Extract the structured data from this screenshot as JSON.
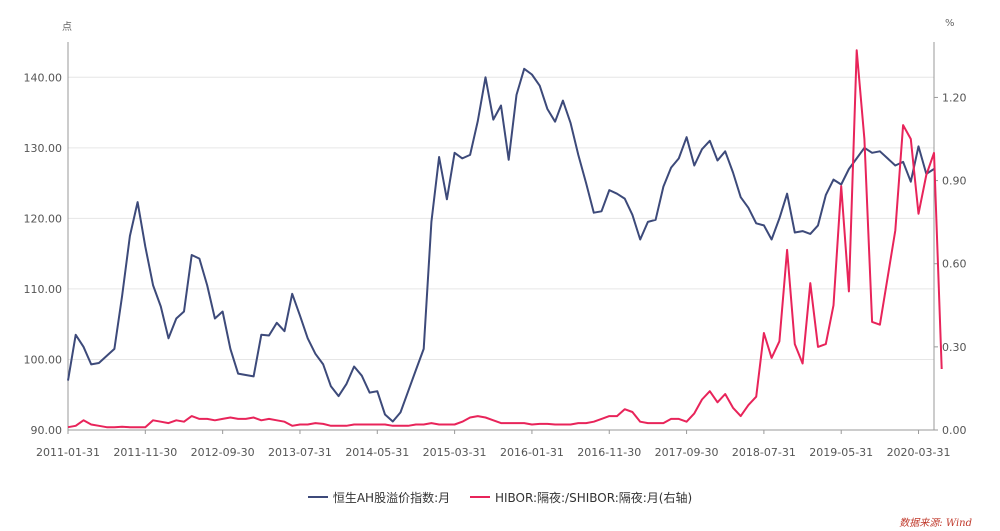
{
  "chart_data": {
    "type": "line",
    "title": "",
    "left_axis": {
      "unit": "点",
      "ylim": [
        90,
        145
      ],
      "ticks": [
        90,
        100,
        110,
        120,
        130,
        140
      ],
      "labels": [
        "90.00",
        "100.00",
        "110.00",
        "120.00",
        "130.00",
        "140.00"
      ]
    },
    "right_axis": {
      "unit": "%",
      "ylim": [
        0,
        1.4
      ],
      "ticks": [
        0,
        0.3,
        0.6,
        0.9,
        1.2
      ],
      "labels": [
        "0.00",
        "0.30",
        "0.60",
        "0.90",
        "1.20"
      ]
    },
    "x_ticks": [
      "2011-01-31",
      "2011-11-30",
      "2012-09-30",
      "2013-07-31",
      "2014-05-31",
      "2015-03-31",
      "2016-01-31",
      "2016-11-30",
      "2017-09-30",
      "2018-07-31",
      "2019-05-31",
      "2020-03-31"
    ],
    "series": [
      {
        "name": "恒生AH股溢价指数:月",
        "color": "#3d4a7a",
        "axis": "left",
        "values": [
          97,
          103.5,
          101.8,
          99.3,
          99.5,
          100.5,
          101.5,
          109,
          117.5,
          122.3,
          116,
          110.5,
          107.5,
          103,
          105.8,
          106.8,
          114.8,
          114.3,
          110.5,
          105.8,
          106.8,
          101.5,
          98,
          97.8,
          97.6,
          103.5,
          103.4,
          105.2,
          104,
          109.3,
          106.2,
          103,
          100.8,
          99.3,
          96.2,
          94.8,
          96.5,
          99,
          97.7,
          95.3,
          95.5,
          92.2,
          91.2,
          92.5,
          95.5,
          98.5,
          101.5,
          119.5,
          128.7,
          122.7,
          129.3,
          128.5,
          129,
          133.8,
          140,
          134,
          136,
          128.3,
          137.5,
          141.2,
          140.4,
          138.8,
          135.5,
          133.7,
          136.7,
          133.5,
          129,
          125,
          120.8,
          121,
          124,
          123.5,
          122.8,
          120.5,
          117,
          119.5,
          119.8,
          124.5,
          127.2,
          128.5,
          131.5,
          127.5,
          129.8,
          131,
          128.2,
          129.5,
          126.5,
          123,
          121.5,
          119.3,
          119,
          117,
          120,
          123.5,
          118,
          118.2,
          117.8,
          119,
          123.3,
          125.5,
          124.8,
          127,
          128.5,
          130,
          129.3,
          129.5,
          128.5,
          127.5,
          128,
          125.2,
          130.2,
          126.3,
          127
        ]
      },
      {
        "name": "HIBOR:隔夜:/SHIBOR:隔夜:月(右轴)",
        "color": "#e8245a",
        "axis": "right",
        "values": [
          0.01,
          0.015,
          0.035,
          0.02,
          0.015,
          0.01,
          0.01,
          0.012,
          0.01,
          0.01,
          0.01,
          0.035,
          0.03,
          0.025,
          0.035,
          0.03,
          0.05,
          0.04,
          0.04,
          0.035,
          0.04,
          0.045,
          0.04,
          0.04,
          0.045,
          0.035,
          0.04,
          0.035,
          0.03,
          0.015,
          0.02,
          0.02,
          0.025,
          0.022,
          0.015,
          0.015,
          0.015,
          0.02,
          0.02,
          0.02,
          0.02,
          0.02,
          0.015,
          0.015,
          0.015,
          0.02,
          0.02,
          0.025,
          0.02,
          0.02,
          0.02,
          0.03,
          0.045,
          0.05,
          0.045,
          0.035,
          0.025,
          0.025,
          0.025,
          0.025,
          0.02,
          0.022,
          0.022,
          0.02,
          0.02,
          0.02,
          0.025,
          0.025,
          0.03,
          0.04,
          0.05,
          0.05,
          0.075,
          0.065,
          0.03,
          0.025,
          0.025,
          0.025,
          0.04,
          0.04,
          0.03,
          0.06,
          0.11,
          0.14,
          0.1,
          0.13,
          0.08,
          0.05,
          0.09,
          0.12,
          0.35,
          0.26,
          0.32,
          0.65,
          0.31,
          0.24,
          0.53,
          0.3,
          0.31,
          0.45,
          0.88,
          0.5,
          1.37,
          1.05,
          0.39,
          0.38,
          0.55,
          0.72,
          1.1,
          1.05,
          0.78,
          0.92,
          1.0,
          0.22
        ]
      }
    ],
    "legend": "bottom-center"
  },
  "source": "数据来源: Wind"
}
